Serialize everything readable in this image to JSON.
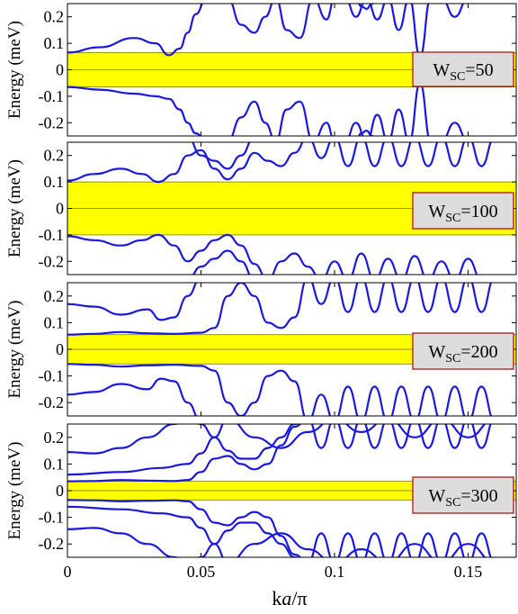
{
  "figure": {
    "xlabel": "k a/π",
    "xlabel_parts": {
      "k": "k",
      "a": "a",
      "pi": "/π"
    },
    "ylabel": "Energy (meV)",
    "colors": {
      "band": "#1a1adf",
      "gap": "#ffff00",
      "gap_edge": "#7a7a00",
      "box_fill": "#dcdcdc",
      "box_border": "#b00000"
    }
  },
  "chart_data": [
    {
      "type": "line",
      "label": {
        "main": "W",
        "sub": "SC",
        "value": "=50"
      },
      "xlim": [
        0,
        0.168
      ],
      "ylim": [
        -0.25,
        0.25
      ],
      "xticks": [
        0,
        0.05,
        0.1,
        0.15
      ],
      "xtick_labels": [
        "0",
        "0.05",
        "0.1",
        "0.15"
      ],
      "yticks": [
        0.2,
        0.1,
        0,
        -0.1,
        -0.2
      ],
      "ytick_labels": [
        "0.2",
        "0.1",
        "0",
        "-0.1",
        "-0.2"
      ],
      "gap": [
        -0.065,
        0.065
      ],
      "series": [
        {
          "x": [
            0,
            0.012,
            0.025,
            0.033,
            0.038,
            0.042,
            0.045,
            0.048,
            0.052
          ],
          "y": [
            0.065,
            0.085,
            0.12,
            0.1,
            0.055,
            0.08,
            0.14,
            0.21,
            0.27
          ]
        },
        {
          "x": [
            0,
            0.012,
            0.025,
            0.033,
            0.038,
            0.042,
            0.045,
            0.048,
            0.052
          ],
          "y": [
            -0.065,
            -0.075,
            -0.09,
            -0.1,
            -0.11,
            -0.15,
            -0.2,
            -0.24,
            -0.27
          ]
        },
        {
          "x": [
            0.06,
            0.065,
            0.07,
            0.074,
            0.078,
            0.082,
            0.087,
            0.092,
            0.097,
            0.1,
            0.104,
            0.108,
            0.112,
            0.116,
            0.12,
            0.124,
            0.128,
            0.132,
            0.136,
            0.14,
            0.145,
            0.15,
            0.155,
            0.16
          ],
          "y": [
            0.27,
            0.17,
            0.14,
            0.2,
            0.27,
            0.15,
            0.12,
            0.27,
            0.19,
            0.27,
            0.27,
            0.2,
            0.27,
            0.19,
            0.27,
            0.15,
            0.27,
            0.05,
            0.27,
            0.27,
            0.2,
            0.27,
            0.27,
            0.27
          ]
        },
        {
          "x": [
            0.06,
            0.065,
            0.07,
            0.074,
            0.078,
            0.082,
            0.087,
            0.092,
            0.097,
            0.1,
            0.104,
            0.108,
            0.112,
            0.116,
            0.12,
            0.124,
            0.128,
            0.132,
            0.136,
            0.14,
            0.145,
            0.15,
            0.155,
            0.16
          ],
          "y": [
            -0.27,
            -0.18,
            -0.12,
            -0.2,
            -0.27,
            -0.15,
            -0.12,
            -0.27,
            -0.2,
            -0.27,
            -0.27,
            -0.2,
            -0.27,
            -0.17,
            -0.27,
            -0.15,
            -0.27,
            -0.05,
            -0.27,
            -0.27,
            -0.2,
            -0.27,
            -0.27,
            -0.27
          ]
        },
        {
          "x": [
            0.108,
            0.11,
            0.112,
            0.114,
            0.116,
            0.118
          ],
          "y": [
            0.27,
            0.24,
            0.23,
            0.25,
            0.27,
            0.27
          ]
        },
        {
          "x": [
            0.108,
            0.11,
            0.112,
            0.114,
            0.116,
            0.118
          ],
          "y": [
            -0.27,
            -0.24,
            -0.23,
            -0.25,
            -0.27,
            -0.27
          ]
        }
      ]
    },
    {
      "type": "line",
      "label": {
        "main": "W",
        "sub": "SC",
        "value": "=100"
      },
      "xlim": [
        0,
        0.168
      ],
      "ylim": [
        -0.25,
        0.25
      ],
      "xticks": [
        0,
        0.05,
        0.1,
        0.15
      ],
      "xtick_labels": [
        "0",
        "0.05",
        "0.1",
        "0.15"
      ],
      "yticks": [
        0.2,
        0.1,
        0,
        -0.1,
        -0.2
      ],
      "ytick_labels": [
        "0.2",
        "0.1",
        "0",
        "-0.1",
        "-0.2"
      ],
      "gap": [
        -0.1,
        0.1
      ],
      "series": [
        {
          "x": [
            0,
            0.01,
            0.02,
            0.028,
            0.034,
            0.04,
            0.045,
            0.05,
            0.055,
            0.06,
            0.065,
            0.07,
            0.075,
            0.08,
            0.085,
            0.09,
            0.095,
            0.1,
            0.105,
            0.11,
            0.115,
            0.12,
            0.125,
            0.13,
            0.135,
            0.14,
            0.145,
            0.15,
            0.155,
            0.16
          ],
          "y": [
            0.105,
            0.13,
            0.15,
            0.13,
            0.1,
            0.13,
            0.2,
            0.22,
            0.15,
            0.11,
            0.15,
            0.21,
            0.18,
            0.16,
            0.21,
            0.27,
            0.19,
            0.27,
            0.16,
            0.27,
            0.16,
            0.27,
            0.16,
            0.27,
            0.16,
            0.27,
            0.16,
            0.27,
            0.16,
            0.27
          ]
        },
        {
          "x": [
            0,
            0.01,
            0.02,
            0.028,
            0.034,
            0.04,
            0.045,
            0.05,
            0.055,
            0.06,
            0.065,
            0.07,
            0.075,
            0.08,
            0.085,
            0.09,
            0.095,
            0.1,
            0.105,
            0.11,
            0.115,
            0.12,
            0.125,
            0.13,
            0.135,
            0.14,
            0.145,
            0.15,
            0.155,
            0.16
          ],
          "y": [
            -0.105,
            -0.12,
            -0.14,
            -0.12,
            -0.1,
            -0.14,
            -0.2,
            -0.16,
            -0.12,
            -0.1,
            -0.14,
            -0.21,
            -0.27,
            -0.2,
            -0.17,
            -0.22,
            -0.27,
            -0.2,
            -0.27,
            -0.17,
            -0.27,
            -0.19,
            -0.27,
            -0.18,
            -0.27,
            -0.2,
            -0.27,
            -0.19,
            -0.27,
            -0.27
          ]
        },
        {
          "x": [
            0.045,
            0.05,
            0.055,
            0.06,
            0.065,
            0.07
          ],
          "y": [
            0.27,
            0.2,
            0.18,
            0.15,
            0.2,
            0.27
          ]
        },
        {
          "x": [
            0.045,
            0.05,
            0.055,
            0.06,
            0.065,
            0.07
          ],
          "y": [
            -0.27,
            -0.22,
            -0.19,
            -0.16,
            -0.2,
            -0.27
          ]
        }
      ]
    },
    {
      "type": "line",
      "label": {
        "main": "W",
        "sub": "SC",
        "value": "=200"
      },
      "xlim": [
        0,
        0.168
      ],
      "ylim": [
        -0.25,
        0.25
      ],
      "xticks": [
        0,
        0.05,
        0.1,
        0.15
      ],
      "xtick_labels": [
        "0",
        "0.05",
        "0.1",
        "0.15"
      ],
      "yticks": [
        0.2,
        0.1,
        0,
        -0.1,
        -0.2
      ],
      "ytick_labels": [
        "0.2",
        "0.1",
        "0",
        "-0.1",
        "-0.2"
      ],
      "gap": [
        -0.055,
        0.055
      ],
      "series": [
        {
          "x": [
            0,
            0.01,
            0.02,
            0.03,
            0.04,
            0.05,
            0.055,
            0.06,
            0.065,
            0.07,
            0.075,
            0.08,
            0.085,
            0.09,
            0.095,
            0.1,
            0.105,
            0.11,
            0.115,
            0.12,
            0.125,
            0.13,
            0.135,
            0.14,
            0.145,
            0.15,
            0.155,
            0.16
          ],
          "y": [
            0.055,
            0.058,
            0.065,
            0.06,
            0.058,
            0.062,
            0.08,
            0.2,
            0.25,
            0.2,
            0.1,
            0.08,
            0.12,
            0.27,
            0.17,
            0.27,
            0.14,
            0.27,
            0.14,
            0.27,
            0.14,
            0.27,
            0.14,
            0.27,
            0.14,
            0.27,
            0.14,
            0.27
          ]
        },
        {
          "x": [
            0,
            0.01,
            0.02,
            0.03,
            0.04,
            0.05,
            0.055,
            0.06,
            0.065,
            0.07,
            0.075,
            0.08,
            0.085,
            0.09,
            0.095,
            0.1,
            0.105,
            0.11,
            0.115,
            0.12,
            0.125,
            0.13,
            0.135,
            0.14,
            0.145,
            0.15,
            0.155,
            0.16
          ],
          "y": [
            -0.055,
            -0.058,
            -0.065,
            -0.06,
            -0.058,
            -0.062,
            -0.08,
            -0.2,
            -0.25,
            -0.2,
            -0.1,
            -0.08,
            -0.12,
            -0.27,
            -0.17,
            -0.27,
            -0.14,
            -0.27,
            -0.14,
            -0.27,
            -0.14,
            -0.27,
            -0.14,
            -0.27,
            -0.14,
            -0.27,
            -0.14,
            -0.27
          ]
        },
        {
          "x": [
            0,
            0.01,
            0.02,
            0.03,
            0.035,
            0.04,
            0.045,
            0.05,
            0.055,
            0.06
          ],
          "y": [
            0.17,
            0.16,
            0.13,
            0.15,
            0.11,
            0.12,
            0.2,
            0.27,
            0.27,
            0.27
          ]
        },
        {
          "x": [
            0,
            0.01,
            0.02,
            0.03,
            0.035,
            0.04,
            0.045,
            0.05,
            0.055,
            0.06
          ],
          "y": [
            -0.17,
            -0.16,
            -0.13,
            -0.15,
            -0.11,
            -0.12,
            -0.2,
            -0.27,
            -0.27,
            -0.27
          ]
        }
      ]
    },
    {
      "type": "line",
      "label": {
        "main": "W",
        "sub": "SC",
        "value": "=300"
      },
      "xlim": [
        0,
        0.168
      ],
      "ylim": [
        -0.25,
        0.25
      ],
      "xticks": [
        0,
        0.05,
        0.1,
        0.15
      ],
      "xtick_labels": [
        "0",
        "0.05",
        "0.1",
        "0.15"
      ],
      "yticks": [
        0.2,
        0.1,
        0,
        -0.1,
        -0.2
      ],
      "ytick_labels": [
        "0.2",
        "0.1",
        "0",
        "-0.1",
        "-0.2"
      ],
      "gap": [
        -0.035,
        0.035
      ],
      "series": [
        {
          "x": [
            0,
            0.01,
            0.02,
            0.03,
            0.04,
            0.045,
            0.05,
            0.055,
            0.06,
            0.065,
            0.07,
            0.075,
            0.08,
            0.085,
            0.09,
            0.095,
            0.1,
            0.105,
            0.11,
            0.115,
            0.12,
            0.125,
            0.13,
            0.135,
            0.14,
            0.145,
            0.15,
            0.155,
            0.16
          ],
          "y": [
            0.035,
            0.036,
            0.04,
            0.038,
            0.036,
            0.04,
            0.07,
            0.12,
            0.13,
            0.1,
            0.08,
            0.1,
            0.17,
            0.24,
            0.27,
            0.16,
            0.27,
            0.16,
            0.27,
            0.16,
            0.27,
            0.16,
            0.27,
            0.16,
            0.27,
            0.16,
            0.27,
            0.16,
            0.27
          ]
        },
        {
          "x": [
            0,
            0.01,
            0.02,
            0.03,
            0.04,
            0.045,
            0.05,
            0.055,
            0.06,
            0.065,
            0.07,
            0.075,
            0.08,
            0.085,
            0.09,
            0.095,
            0.1,
            0.105,
            0.11,
            0.115,
            0.12,
            0.125,
            0.13,
            0.135,
            0.14,
            0.145,
            0.15,
            0.155,
            0.16
          ],
          "y": [
            -0.035,
            -0.036,
            -0.04,
            -0.038,
            -0.036,
            -0.04,
            -0.07,
            -0.12,
            -0.13,
            -0.1,
            -0.08,
            -0.1,
            -0.17,
            -0.24,
            -0.27,
            -0.16,
            -0.27,
            -0.16,
            -0.27,
            -0.16,
            -0.27,
            -0.16,
            -0.27,
            -0.16,
            -0.27,
            -0.16,
            -0.27,
            -0.16,
            -0.27
          ]
        },
        {
          "x": [
            0,
            0.01,
            0.02,
            0.03,
            0.04,
            0.045,
            0.05,
            0.055,
            0.06,
            0.065,
            0.07,
            0.075,
            0.08,
            0.085,
            0.09
          ],
          "y": [
            0.145,
            0.14,
            0.16,
            0.2,
            0.25,
            0.27,
            0.25,
            0.2,
            0.15,
            0.12,
            0.12,
            0.16,
            0.2,
            0.25,
            0.27
          ]
        },
        {
          "x": [
            0,
            0.01,
            0.02,
            0.03,
            0.04,
            0.045,
            0.05,
            0.055,
            0.06,
            0.065,
            0.07,
            0.075,
            0.08,
            0.085,
            0.09
          ],
          "y": [
            -0.145,
            -0.14,
            -0.16,
            -0.2,
            -0.25,
            -0.27,
            -0.25,
            -0.2,
            -0.15,
            -0.12,
            -0.12,
            -0.16,
            -0.2,
            -0.25,
            -0.27
          ]
        },
        {
          "x": [
            0,
            0.02,
            0.035,
            0.045,
            0.05,
            0.055,
            0.06,
            0.07,
            0.08,
            0.09,
            0.1,
            0.11,
            0.12,
            0.13,
            0.14,
            0.15,
            0.16
          ],
          "y": [
            0.06,
            0.07,
            0.085,
            0.1,
            0.14,
            0.2,
            0.27,
            0.2,
            0.16,
            0.22,
            0.27,
            0.22,
            0.27,
            0.2,
            0.27,
            0.2,
            0.27
          ]
        },
        {
          "x": [
            0,
            0.02,
            0.035,
            0.045,
            0.05,
            0.055,
            0.06,
            0.07,
            0.08,
            0.09,
            0.1,
            0.11,
            0.12,
            0.13,
            0.14,
            0.15,
            0.16
          ],
          "y": [
            -0.06,
            -0.07,
            -0.085,
            -0.1,
            -0.14,
            -0.2,
            -0.27,
            -0.2,
            -0.16,
            -0.22,
            -0.27,
            -0.22,
            -0.27,
            -0.2,
            -0.27,
            -0.2,
            -0.27
          ]
        }
      ]
    }
  ]
}
